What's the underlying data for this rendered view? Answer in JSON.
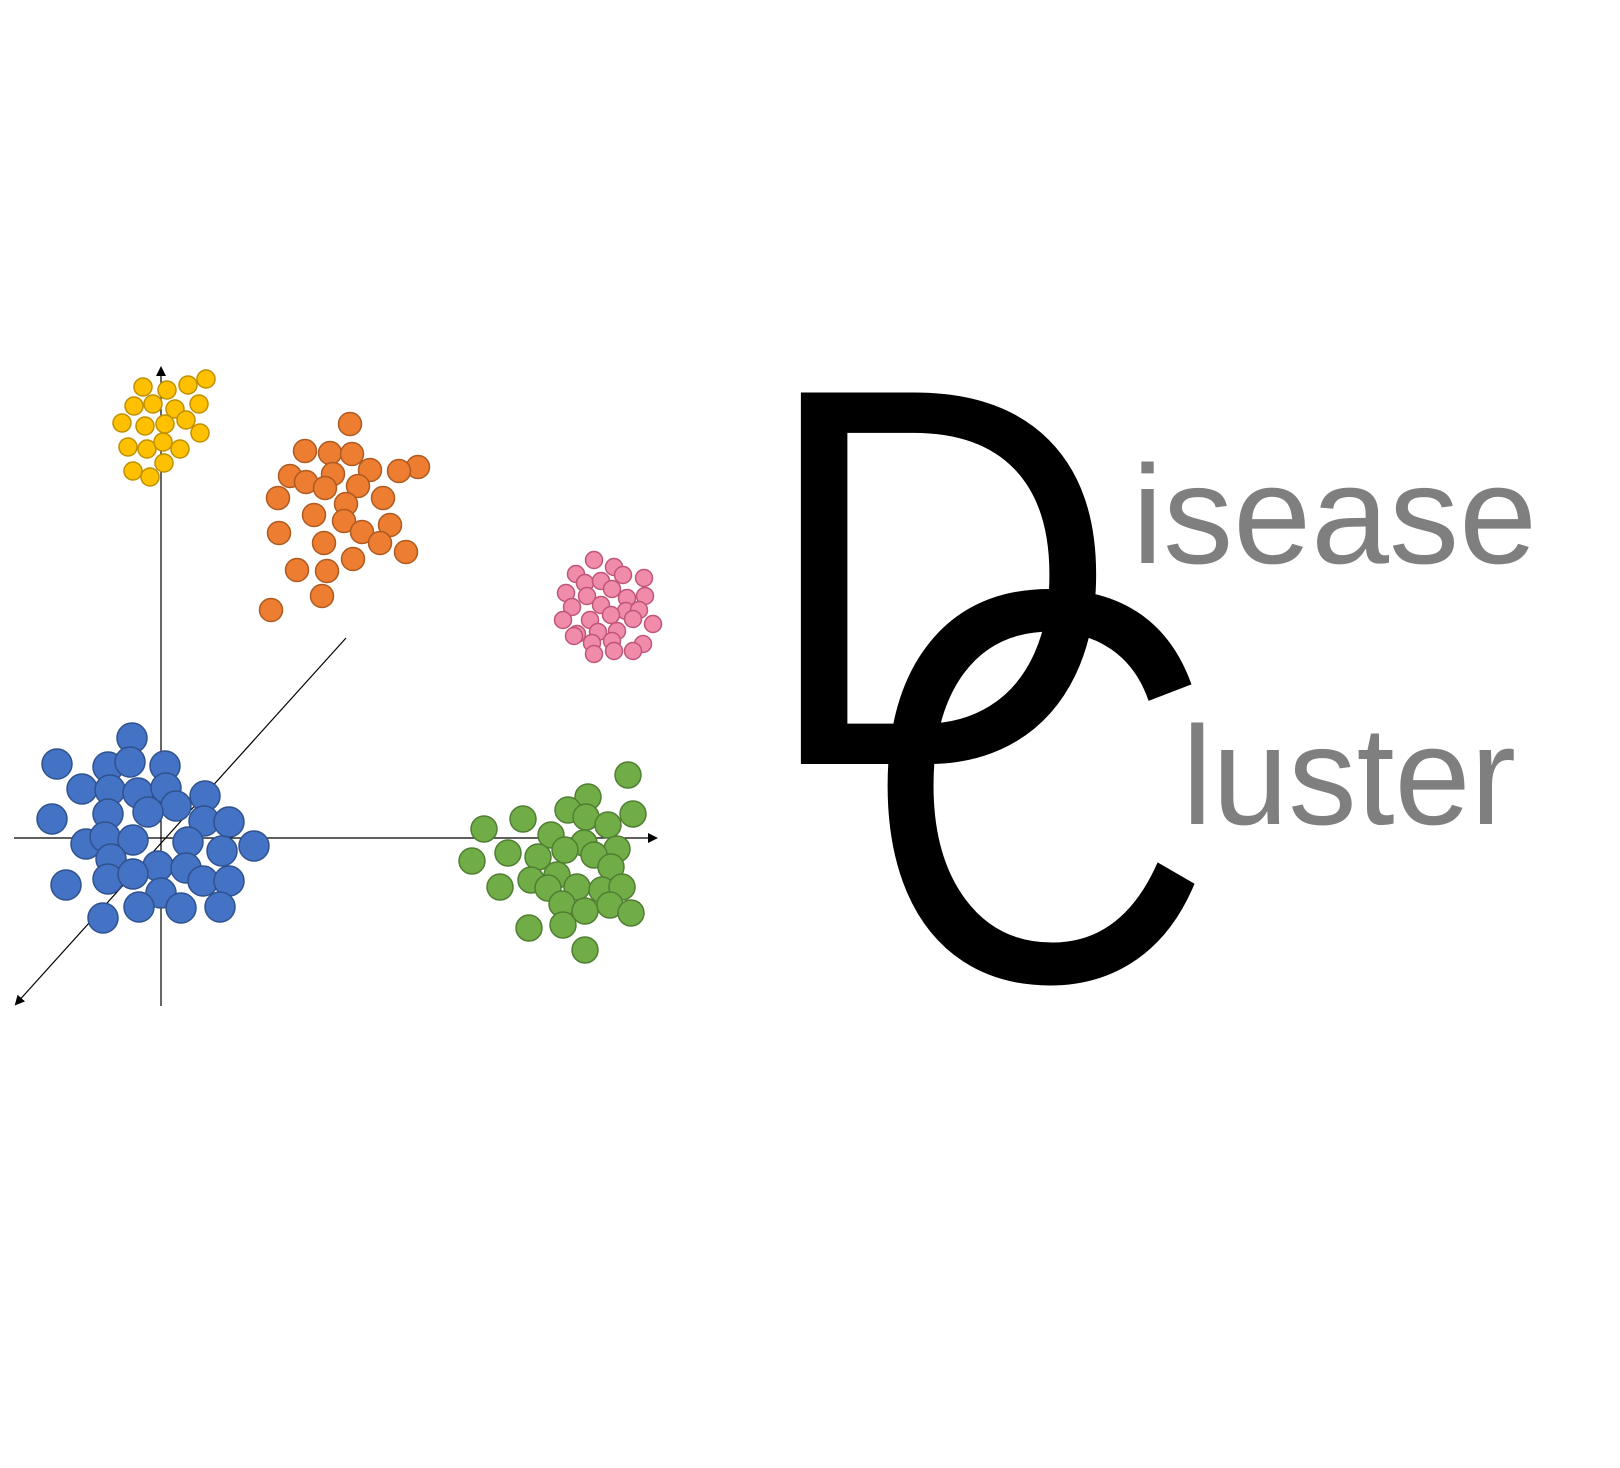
{
  "logo": {
    "letter_d": "D",
    "letter_c": "C",
    "word1_rest": "isease",
    "word2_rest": "luster",
    "letter_color": "#000000",
    "rest_color": "#7f7f7f"
  },
  "clusters": {
    "yellow": {
      "fill": "#FFC000",
      "stroke": "#BF9000"
    },
    "orange": {
      "fill": "#ED7D31",
      "stroke": "#AE5A21"
    },
    "pink": {
      "fill": "#F08CAA",
      "stroke": "#C0557A"
    },
    "blue": {
      "fill": "#4472C4",
      "stroke": "#2F528F"
    },
    "green": {
      "fill": "#70AD47",
      "stroke": "#507E32"
    }
  },
  "axes": {
    "color": "#000000"
  }
}
